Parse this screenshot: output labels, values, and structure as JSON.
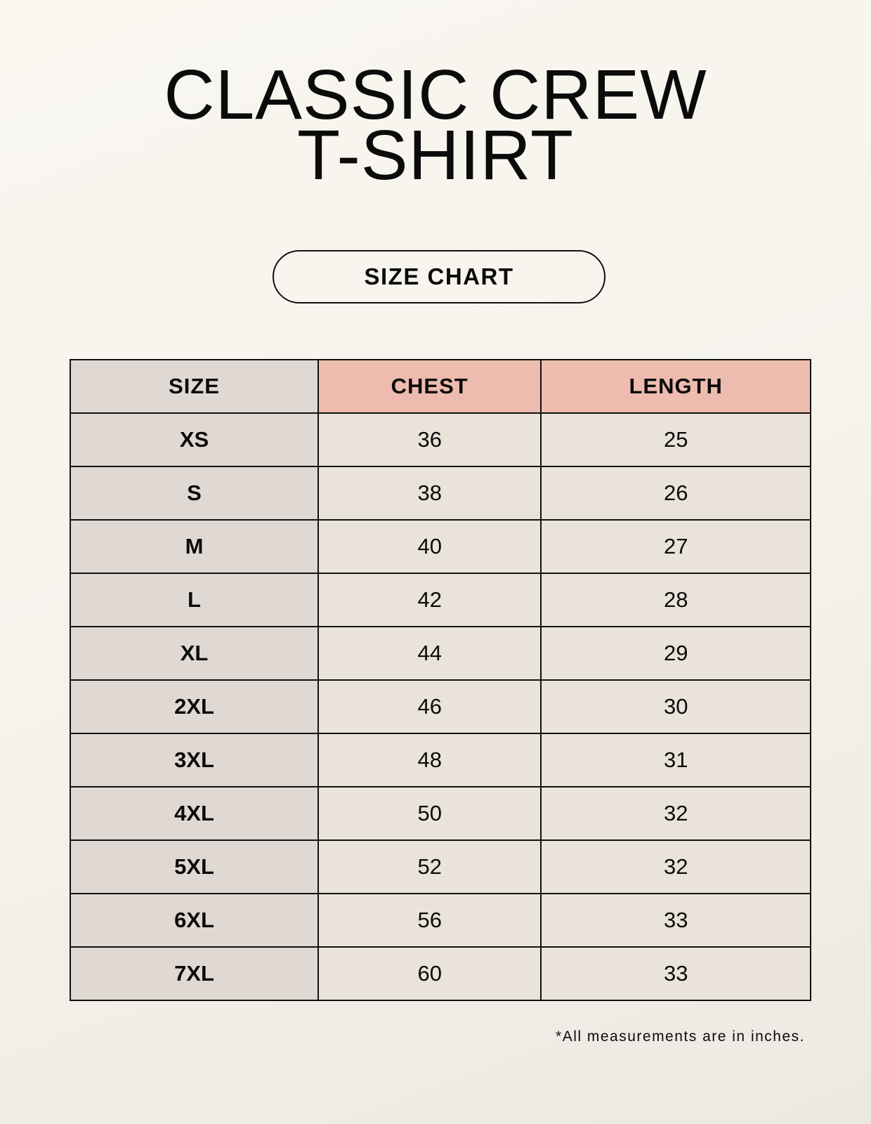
{
  "title_lines": [
    "CLASSIC CREW",
    "T-SHIRT"
  ],
  "badge": "SIZE CHART",
  "table": {
    "headers": [
      "SIZE",
      "CHEST",
      "LENGTH"
    ],
    "rows": [
      [
        "XS",
        "36",
        "25"
      ],
      [
        "S",
        "38",
        "26"
      ],
      [
        "M",
        "40",
        "27"
      ],
      [
        "L",
        "42",
        "28"
      ],
      [
        "XL",
        "44",
        "29"
      ],
      [
        "2XL",
        "46",
        "30"
      ],
      [
        "3XL",
        "48",
        "31"
      ],
      [
        "4XL",
        "50",
        "32"
      ],
      [
        "5XL",
        "52",
        "32"
      ],
      [
        "6XL",
        "56",
        "33"
      ],
      [
        "7XL",
        "60",
        "33"
      ]
    ]
  },
  "footnote": "*All measurements are in inches.",
  "colors": {
    "size_column": "#e0d9d3",
    "header_accent": "#eebcae",
    "value_cells": "#eae3d9"
  }
}
